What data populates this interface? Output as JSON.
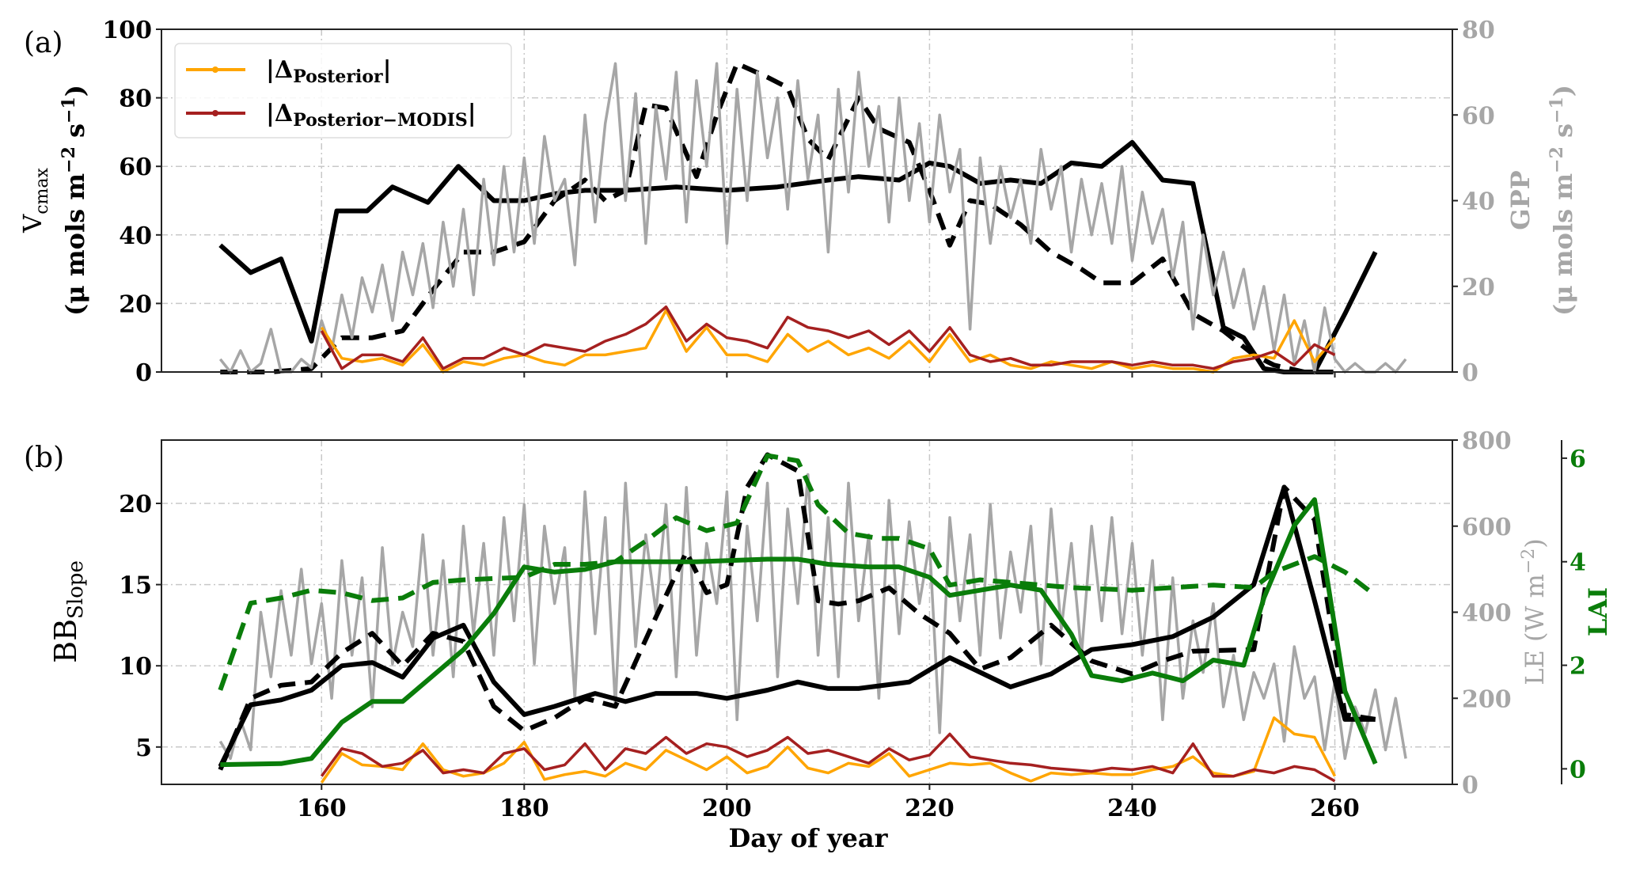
{
  "colors": {
    "vcmax_bb": "#000000",
    "gpp_le": "#a6a6a6",
    "lai": "#0a7d0a",
    "delta_posterior": "#ffa500",
    "delta_posterior_modis": "#a52020",
    "grid": "#c8c8c8"
  },
  "chart_data": [
    {
      "panel_label": "(a)",
      "type": "line",
      "ylabel": {
        "main": "V",
        "sub": "cmax",
        "units": "(μ mols m",
        "exp1": "−2",
        "mid": " s",
        "exp2": "−1",
        "close": ")"
      },
      "ylabel_right": {
        "main": "GPP",
        "units": "(μ mols m",
        "exp1": "−2",
        "mid": " s",
        "exp2": "−1",
        "close": ")"
      },
      "xlim": [
        144.2,
        271.6
      ],
      "ylim": [
        0,
        100
      ],
      "ylim_right": [
        0,
        80
      ],
      "xticks": [
        160,
        180,
        200,
        220,
        240,
        260
      ],
      "yticks": [
        0,
        20,
        40,
        60,
        80,
        100
      ],
      "yticks_right": [
        0,
        20,
        40,
        60,
        80
      ],
      "grid": true,
      "legend": {
        "placement": "top-left",
        "entries": [
          {
            "main": "|Δ",
            "sub": "Posterior",
            "close": "|",
            "series": "delta_posterior"
          },
          {
            "main": "|Δ",
            "sub": "Posterior−MODIS",
            "close": "|",
            "series": "delta_posterior_modis"
          }
        ]
      },
      "series": [
        {
          "name": "Vcmax solid",
          "axis": "left",
          "style": "solid",
          "color": "#000000",
          "x": [
            150,
            153,
            156,
            159,
            161.5,
            164.5,
            167,
            170.5,
            173.5,
            177,
            180,
            183,
            186,
            190,
            195,
            200,
            205,
            210,
            213,
            217,
            220,
            222,
            225,
            228,
            231,
            234,
            237,
            240,
            243,
            246,
            249,
            251,
            253,
            255,
            258,
            261,
            264
          ],
          "y": [
            37,
            29,
            33,
            9,
            47,
            47,
            54,
            49.5,
            60,
            50,
            50,
            52,
            53,
            53,
            54,
            53,
            54,
            56,
            57,
            56,
            61,
            60,
            55,
            56,
            55,
            61,
            60,
            67,
            56,
            55,
            13,
            10,
            1,
            0,
            0,
            17,
            35
          ]
        },
        {
          "name": "Vcmax dashed",
          "axis": "left",
          "style": "dashed",
          "color": "#000000",
          "x": [
            150,
            155,
            159,
            162,
            165,
            168,
            171,
            174,
            177,
            180,
            183,
            186,
            188,
            190,
            192,
            194,
            197,
            199,
            201,
            204,
            206,
            208,
            210,
            213,
            215,
            218,
            220,
            222,
            224,
            226,
            229,
            232,
            235,
            237,
            240,
            243,
            246,
            249,
            252,
            254,
            257,
            260
          ],
          "y": [
            0,
            0,
            1,
            10,
            10,
            12,
            24,
            35,
            35,
            38,
            50,
            56,
            50,
            53,
            78,
            77,
            57,
            75,
            90,
            86,
            83,
            68,
            62,
            80,
            71,
            67,
            53,
            37,
            50,
            49,
            43,
            35,
            30,
            26,
            26,
            33,
            17,
            12,
            5,
            2,
            0,
            0
          ]
        },
        {
          "name": "GPP",
          "axis": "right",
          "style": "solid",
          "color": "#a6a6a6",
          "x_start": 150,
          "y": [
            3,
            0,
            5,
            0,
            2,
            10,
            0,
            0,
            3,
            1,
            12,
            5,
            18,
            8,
            22,
            14,
            25,
            12,
            28,
            18,
            30,
            15,
            35,
            20,
            38,
            18,
            45,
            25,
            48,
            28,
            50,
            30,
            55,
            40,
            45,
            25,
            60,
            35,
            58,
            72,
            40,
            65,
            30,
            62,
            45,
            70,
            35,
            68,
            48,
            72,
            30,
            66,
            40,
            70,
            50,
            64,
            38,
            68,
            45,
            60,
            28,
            66,
            42,
            70,
            48,
            62,
            35,
            64,
            40,
            58,
            35,
            60,
            42,
            52,
            10,
            50,
            30,
            48,
            36,
            45,
            30,
            52,
            38,
            48,
            28,
            45,
            32,
            44,
            30,
            48,
            26,
            42,
            30,
            38,
            22,
            35,
            10,
            32,
            18,
            28,
            15,
            24,
            10,
            20,
            5,
            18,
            2,
            12,
            0,
            15,
            3,
            0,
            2,
            0,
            0,
            2,
            0,
            3
          ]
        },
        {
          "name": "|ΔPosterior|",
          "axis": "left",
          "style": "solid",
          "color": "#ffa500",
          "x_start": 160,
          "x_step": 2,
          "y": [
            13,
            4,
            3,
            4,
            2,
            8,
            0,
            3,
            2,
            4,
            5,
            3,
            2,
            5,
            5,
            6,
            7,
            18,
            6,
            13,
            5,
            5,
            3,
            11,
            6,
            9,
            5,
            7,
            4,
            9,
            3,
            11,
            3,
            5,
            2,
            1,
            3,
            2,
            1,
            3,
            1,
            2,
            1,
            1,
            0,
            4,
            5,
            4,
            15,
            3,
            10
          ]
        },
        {
          "name": "|ΔPosterior−MODIS|",
          "axis": "left",
          "style": "solid",
          "color": "#a52020",
          "x_start": 160,
          "x_step": 2,
          "y": [
            12,
            1,
            5,
            5,
            3,
            10,
            1,
            4,
            4,
            7,
            5,
            8,
            7,
            6,
            9,
            11,
            14,
            19,
            9,
            14,
            10,
            9,
            7,
            16,
            13,
            12,
            10,
            12,
            8,
            12,
            6,
            13,
            5,
            3,
            4,
            2,
            2,
            3,
            3,
            3,
            2,
            3,
            2,
            2,
            1,
            3,
            4,
            6,
            2,
            8,
            5
          ]
        }
      ]
    },
    {
      "panel_label": "(b)",
      "type": "line",
      "xlabel": "Day of year",
      "ylabel": {
        "main": "BB",
        "sub": "Slope"
      },
      "ylabel_right": {
        "main": "LE (W m",
        "exp1": "−2",
        "close": ")"
      },
      "ylabel_right2": "LAI",
      "xlim": [
        144.2,
        271.6
      ],
      "ylim": [
        2.7,
        23.9
      ],
      "ylim_right": [
        0,
        800
      ],
      "ylim_right2": [
        -0.3,
        6.35
      ],
      "xticks": [
        160,
        180,
        200,
        220,
        240,
        260
      ],
      "yticks": [
        5,
        10,
        15,
        20
      ],
      "yticks_right": [
        0,
        200,
        400,
        600,
        800
      ],
      "yticks_right2": [
        0,
        2,
        4,
        6
      ],
      "grid": true,
      "series": [
        {
          "name": "LE",
          "axis": "right",
          "style": "solid",
          "color": "#a6a6a6",
          "x_start": 150,
          "y": [
            100,
            60,
            150,
            80,
            400,
            250,
            450,
            300,
            500,
            280,
            420,
            200,
            520,
            300,
            480,
            180,
            550,
            280,
            400,
            320,
            580,
            300,
            520,
            250,
            600,
            350,
            560,
            300,
            620,
            380,
            650,
            280,
            600,
            420,
            550,
            200,
            680,
            350,
            620,
            180,
            700,
            320,
            580,
            400,
            650,
            250,
            690,
            300,
            560,
            420,
            680,
            150,
            600,
            380,
            700,
            250,
            640,
            420,
            720,
            300,
            620,
            250,
            700,
            380,
            580,
            200,
            660,
            350,
            610,
            420,
            560,
            120,
            620,
            380,
            580,
            300,
            650,
            340,
            540,
            400,
            600,
            280,
            640,
            360,
            560,
            300,
            600,
            380,
            620,
            350,
            560,
            300,
            520,
            150,
            480,
            200,
            380,
            260,
            420,
            180,
            300,
            150,
            260,
            200,
            280,
            100,
            320,
            200,
            250,
            80,
            240,
            60,
            180,
            120,
            220,
            80,
            200,
            60
          ]
        },
        {
          "name": "BB solid",
          "axis": "left",
          "style": "solid",
          "color": "#000000",
          "x": [
            150,
            153,
            156,
            159,
            162,
            165,
            168,
            171,
            174,
            177,
            180,
            183,
            187,
            190,
            193,
            197,
            200,
            204,
            207,
            210,
            213,
            218,
            222,
            228,
            232,
            236,
            240,
            244,
            248,
            252,
            255,
            258,
            261,
            264
          ],
          "y": [
            3.8,
            7.6,
            7.9,
            8.5,
            10,
            10.2,
            9.3,
            11.7,
            12.5,
            9,
            7,
            7.5,
            8.3,
            7.8,
            8.3,
            8.3,
            8,
            8.5,
            9,
            8.6,
            8.6,
            9,
            10.5,
            8.7,
            9.5,
            11,
            11.3,
            11.8,
            13,
            15,
            21,
            14,
            6.7,
            6.7
          ]
        },
        {
          "name": "BB dashed",
          "axis": "left",
          "style": "dashed",
          "color": "#000000",
          "x": [
            150,
            153,
            156,
            159,
            162,
            165,
            168,
            171,
            174,
            177,
            180,
            183,
            186,
            189,
            193,
            196,
            198,
            200,
            202,
            204,
            207,
            209,
            211,
            213,
            216,
            219,
            222,
            225,
            228,
            232,
            236,
            240,
            243,
            246,
            252,
            255,
            258,
            261,
            264
          ],
          "y": [
            3.6,
            8,
            8.8,
            9,
            10.8,
            12,
            10,
            12,
            11.5,
            7.5,
            6,
            6.8,
            8,
            7.5,
            13,
            17,
            14.5,
            15,
            21,
            23,
            22,
            14,
            13.8,
            14,
            14.8,
            13.2,
            12,
            9.8,
            10.5,
            12.5,
            10.3,
            9.5,
            10.3,
            10.9,
            11,
            21,
            19,
            7,
            6.7
          ]
        },
        {
          "name": "LAI solid",
          "axis": "right2",
          "style": "solid",
          "color": "#0a7d0a",
          "x": [
            150,
            156,
            159,
            162,
            165,
            168,
            171,
            174,
            177,
            180,
            183,
            186,
            189,
            192,
            197,
            204,
            207,
            210,
            214,
            217,
            220,
            222,
            225,
            228,
            231,
            234,
            236,
            239,
            242,
            245,
            248,
            251,
            253,
            256,
            258,
            261,
            264
          ],
          "y": [
            0.08,
            0.1,
            0.2,
            0.9,
            1.3,
            1.3,
            1.8,
            2.3,
            3.0,
            3.9,
            3.8,
            3.85,
            4.0,
            4.0,
            4.0,
            4.05,
            4.05,
            3.95,
            3.9,
            3.9,
            3.7,
            3.35,
            3.45,
            3.55,
            3.45,
            2.6,
            1.8,
            1.7,
            1.85,
            1.7,
            2.1,
            2.0,
            3.3,
            4.7,
            5.2,
            1.5,
            0.1
          ]
        },
        {
          "name": "LAI dashed",
          "axis": "right2",
          "style": "dashed",
          "color": "#0a7d0a",
          "x": [
            150,
            153,
            156,
            159,
            162,
            165,
            168,
            171,
            174,
            180,
            183,
            186,
            189,
            192,
            195,
            198,
            201,
            204,
            207,
            209,
            212,
            215,
            217,
            220,
            222,
            225,
            228,
            231,
            234,
            240,
            244,
            248,
            252,
            254,
            258,
            261,
            264
          ],
          "y": [
            1.52,
            3.2,
            3.3,
            3.45,
            3.4,
            3.25,
            3.3,
            3.6,
            3.65,
            3.7,
            3.95,
            3.95,
            4.0,
            4.4,
            4.85,
            4.6,
            4.75,
            6.05,
            5.95,
            5.1,
            4.55,
            4.45,
            4.45,
            4.25,
            3.55,
            3.65,
            3.6,
            3.55,
            3.5,
            3.45,
            3.5,
            3.55,
            3.5,
            3.8,
            4.1,
            3.8,
            3.35
          ]
        },
        {
          "name": "|ΔPosterior|",
          "axis": "left",
          "style": "solid",
          "color": "#ffa500",
          "x_start": 160,
          "x_step": 2,
          "y": [
            2.8,
            4.6,
            3.9,
            3.8,
            3.6,
            5.2,
            3.6,
            3.2,
            3.4,
            4.0,
            5.3,
            3.0,
            3.3,
            3.5,
            3.2,
            4.0,
            3.6,
            4.8,
            4.2,
            3.6,
            4.4,
            3.4,
            3.8,
            5.0,
            3.7,
            3.4,
            4.0,
            3.8,
            4.6,
            3.2,
            3.6,
            4.0,
            3.9,
            4.0,
            3.4,
            2.9,
            3.4,
            3.3,
            3.4,
            3.3,
            3.3,
            3.6,
            3.8,
            4.4,
            3.4,
            3.2,
            3.5,
            6.8,
            5.8,
            5.6,
            3.2
          ]
        },
        {
          "name": "|ΔPosterior−MODIS|",
          "axis": "left",
          "style": "solid",
          "color": "#a52020",
          "x_start": 160,
          "x_step": 2,
          "y": [
            3.2,
            4.9,
            4.6,
            3.8,
            4.0,
            4.8,
            3.4,
            3.6,
            3.4,
            4.6,
            4.9,
            3.6,
            3.9,
            5.2,
            3.6,
            4.9,
            4.6,
            5.6,
            4.6,
            5.2,
            5.0,
            4.4,
            4.8,
            5.6,
            4.6,
            4.8,
            4.4,
            4.0,
            4.9,
            4.2,
            4.5,
            5.8,
            4.4,
            4.2,
            4.0,
            3.9,
            3.7,
            3.6,
            3.5,
            3.7,
            3.6,
            3.8,
            3.4,
            5.2,
            3.2,
            3.2,
            3.6,
            3.4,
            3.8,
            3.6,
            2.9
          ]
        }
      ]
    }
  ]
}
